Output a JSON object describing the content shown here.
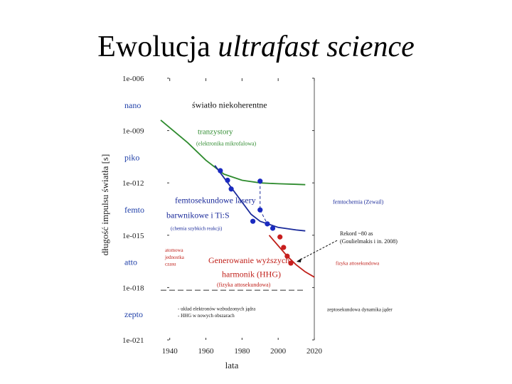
{
  "page": {
    "title_plain": "Ewolucja ",
    "title_italic": "ultrafast science"
  },
  "chart_data": {
    "type": "line",
    "ylabel": "długość impulsu światła [s]",
    "xlabel": "lata",
    "x_ticks": [
      "1940",
      "1960",
      "1980",
      "2000",
      "2020"
    ],
    "xlim": [
      1935,
      2020
    ],
    "ylim_log10": [
      -21,
      -6
    ],
    "y_ticks": [
      {
        "exp": -6,
        "label": "1e-006"
      },
      {
        "exp": -9,
        "label": "1e-009"
      },
      {
        "exp": -12,
        "label": "1e-012"
      },
      {
        "exp": -15,
        "label": "1e-015"
      },
      {
        "exp": -18,
        "label": "1e-018"
      },
      {
        "exp": -21,
        "label": "1e-021"
      }
    ],
    "y_units": [
      {
        "exp": -7.5,
        "label": "nano"
      },
      {
        "exp": -10.5,
        "label": "piko"
      },
      {
        "exp": -13.5,
        "label": "femto"
      },
      {
        "exp": -16.5,
        "label": "atto"
      },
      {
        "exp": -19.5,
        "label": "zepto"
      }
    ],
    "series": [
      {
        "name": "tranzystory",
        "color": "#2e8b2e",
        "x": [
          1935,
          1950,
          1960,
          1970,
          1980,
          1990,
          2000,
          2010,
          2015
        ],
        "y": [
          -8.4,
          -9.7,
          -10.7,
          -11.5,
          -11.85,
          -12.0,
          -12.05,
          -12.08,
          -12.1
        ]
      },
      {
        "name": "lasery femtosekundowe",
        "color": "#1a2a9a",
        "x": [
          1965,
          1975,
          1985,
          1990,
          2000,
          2010,
          2015
        ],
        "y": [
          -11.0,
          -12.4,
          -13.8,
          -14.2,
          -14.55,
          -14.7,
          -14.75
        ]
      },
      {
        "name": "HHG",
        "color": "#c0201a",
        "x": [
          1995,
          2000,
          2005,
          2010,
          2015,
          2020
        ],
        "y": [
          -15.0,
          -15.6,
          -16.2,
          -16.7,
          -17.1,
          -17.4
        ]
      }
    ],
    "points_blue": [
      {
        "x": 1968,
        "y": -11.3
      },
      {
        "x": 1972,
        "y": -11.85
      },
      {
        "x": 1974,
        "y": -12.35
      },
      {
        "x": 1986,
        "y": -14.2
      },
      {
        "x": 1990,
        "y": -11.9
      },
      {
        "x": 1990,
        "y": -13.55
      },
      {
        "x": 1994,
        "y": -14.35
      },
      {
        "x": 1997,
        "y": -14.6
      }
    ],
    "points_red": [
      {
        "x": 2001,
        "y": -15.1
      },
      {
        "x": 2003,
        "y": -15.7
      },
      {
        "x": 2005,
        "y": -16.2
      },
      {
        "x": 2007,
        "y": -16.6
      }
    ],
    "annotations": {
      "incoherent": "światło niekoherentne",
      "transistors": "tranzystory",
      "transistors_sub": "(elektronika mikrofalowa)",
      "femto_line1": "femtosekundowe lasery",
      "femto_line2": "barwnikowe i Ti:S",
      "femto_sub": "(chemia szybkich reakcji)",
      "atto_left1": "atomowa",
      "atto_left2": "jednostka",
      "atto_left3": "czasu",
      "hhg_line1": "Generowanie wyższych",
      "hhg_line2": "harmonik (HHG)",
      "hhg_sub": "(fizyka attosekundowa)",
      "zepto_note1": "- układ elektronów wzbudzonych jądra",
      "zepto_note2": "- HHG w nowych obszarach",
      "right_femto": "femtochemia (Zewail)",
      "right_record1": "Rekord ~80 as",
      "right_record2": "(Goulielmakis i in. 2008)",
      "right_atto": "fizyka attosekundowa",
      "right_zepto": "zeptosekundowa dynamika jąder"
    }
  }
}
